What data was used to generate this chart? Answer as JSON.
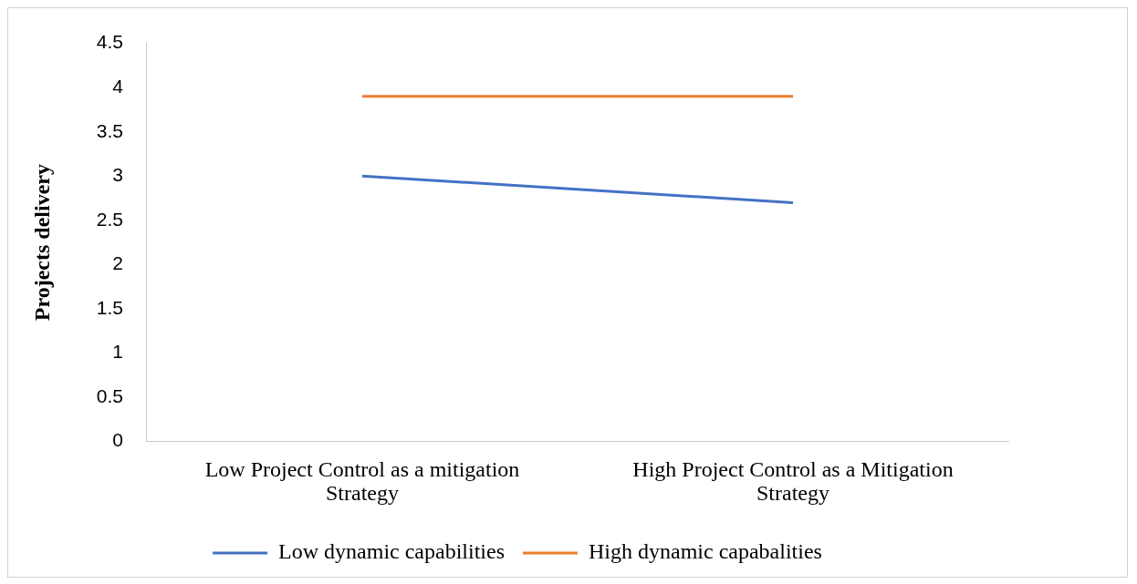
{
  "chart_data": {
    "type": "line",
    "ylabel": "Projects delivery",
    "categories": [
      "Low Project Control as a mitigation Strategy",
      "High Project Control as a Mitigation Strategy"
    ],
    "series": [
      {
        "name": "Low dynamic capabilities",
        "color": "#4472c4",
        "values": [
          3.0,
          2.7
        ]
      },
      {
        "name": "High dynamic capabalities",
        "color": "#ed7d31",
        "values": [
          3.9,
          3.9
        ]
      }
    ],
    "ylim": [
      0,
      4.5
    ],
    "yticks": [
      0,
      0.5,
      1,
      1.5,
      2,
      2.5,
      3,
      3.5,
      4,
      4.5
    ],
    "grid": false,
    "legend": "bottom",
    "marker": "none",
    "line_style": "solid"
  }
}
